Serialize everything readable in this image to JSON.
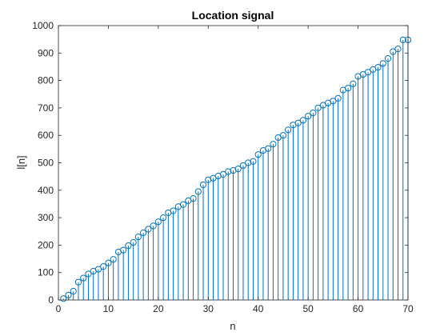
{
  "chart_data": {
    "type": "scatter",
    "style": "stem",
    "title": "Location signal",
    "xlabel": "n",
    "ylabel": "l[n]",
    "xlim": [
      0,
      70
    ],
    "ylim": [
      0,
      1000
    ],
    "xticks": [
      0,
      10,
      20,
      30,
      40,
      50,
      60,
      70
    ],
    "yticks": [
      0,
      100,
      200,
      300,
      400,
      500,
      600,
      700,
      800,
      900,
      1000
    ],
    "grid": false,
    "colors": {
      "series": "#0072BD",
      "axes": "#262626",
      "background": "#ffffff"
    },
    "x": [
      1,
      2,
      3,
      4,
      5,
      6,
      7,
      8,
      9,
      10,
      11,
      12,
      13,
      14,
      15,
      16,
      17,
      18,
      19,
      20,
      21,
      22,
      23,
      24,
      25,
      26,
      27,
      28,
      29,
      30,
      31,
      32,
      33,
      34,
      35,
      36,
      37,
      38,
      39,
      40,
      41,
      42,
      43,
      44,
      45,
      46,
      47,
      48,
      49,
      50,
      51,
      52,
      53,
      54,
      55,
      56,
      57,
      58,
      59,
      60,
      61,
      62,
      63,
      64,
      65,
      66,
      67,
      68,
      69,
      70
    ],
    "y": [
      5,
      18,
      32,
      65,
      80,
      95,
      105,
      112,
      122,
      135,
      148,
      175,
      182,
      198,
      210,
      230,
      245,
      258,
      270,
      285,
      300,
      318,
      325,
      340,
      348,
      362,
      370,
      395,
      420,
      438,
      444,
      452,
      458,
      468,
      472,
      478,
      490,
      500,
      505,
      530,
      545,
      552,
      568,
      592,
      600,
      620,
      638,
      645,
      655,
      670,
      682,
      700,
      710,
      718,
      725,
      735,
      765,
      772,
      788,
      815,
      822,
      830,
      840,
      848,
      862,
      880,
      905,
      915,
      948,
      948
    ]
  }
}
